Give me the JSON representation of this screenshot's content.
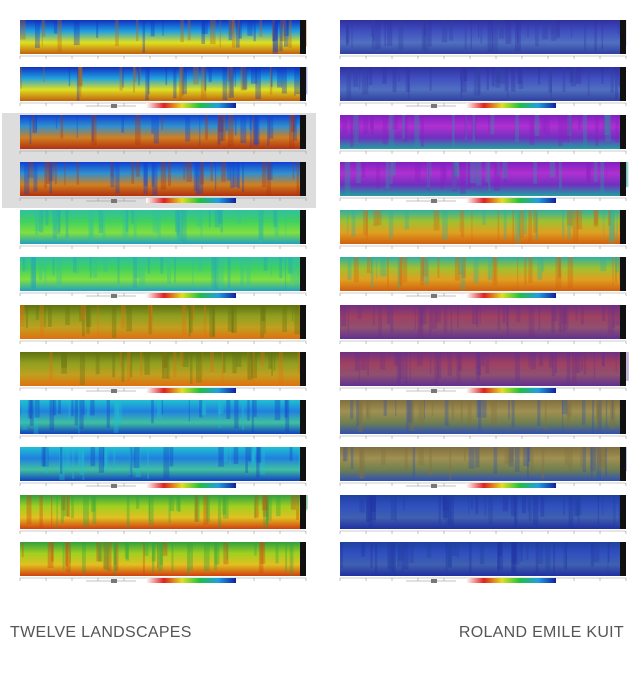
{
  "footer": {
    "left": "TWELVE LANDSCAPES",
    "right": "ROLAND EMILE KUIT"
  }
}
